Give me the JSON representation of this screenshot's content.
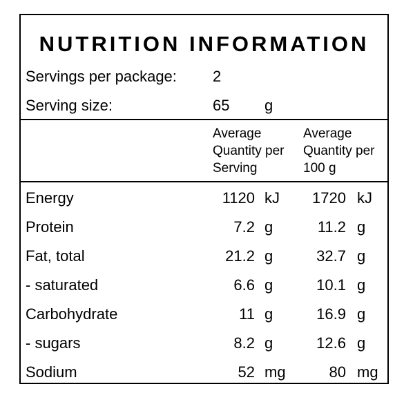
{
  "panel": {
    "title": "NUTRITION INFORMATION",
    "servings_per_package_label": "Servings per package:",
    "servings_per_package_value": "2",
    "serving_size_label": "Serving size:",
    "serving_size_value": "65",
    "serving_size_unit": "g",
    "column_headers": {
      "per_serving": "Average\nQuantity per\nServing",
      "per_100g": "Average\nQuantity per\n100 g"
    },
    "rows": [
      {
        "name": "Energy",
        "per_serving": "1120",
        "per_serving_unit": "kJ",
        "per_100g": "1720",
        "per_100g_unit": "kJ"
      },
      {
        "name": "Protein",
        "per_serving": "7.2",
        "per_serving_unit": "g",
        "per_100g": "11.2",
        "per_100g_unit": "g"
      },
      {
        "name": "Fat, total",
        "per_serving": "21.2",
        "per_serving_unit": "g",
        "per_100g": "32.7",
        "per_100g_unit": "g"
      },
      {
        "name": "- saturated",
        "per_serving": "6.6",
        "per_serving_unit": "g",
        "per_100g": "10.1",
        "per_100g_unit": "g"
      },
      {
        "name": "Carbohydrate",
        "per_serving": "11",
        "per_serving_unit": "g",
        "per_100g": "16.9",
        "per_100g_unit": "g"
      },
      {
        "name": "- sugars",
        "per_serving": "8.2",
        "per_serving_unit": "g",
        "per_100g": "12.6",
        "per_100g_unit": "g"
      },
      {
        "name": "Sodium",
        "per_serving": "52",
        "per_serving_unit": "mg",
        "per_100g": "80",
        "per_100g_unit": "mg"
      }
    ]
  }
}
